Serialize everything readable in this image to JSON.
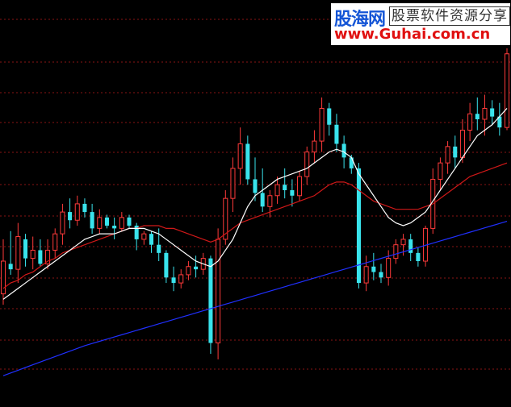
{
  "watermark": {
    "brand": "股海网",
    "tagline": "股票软件资源分享",
    "url": "www.Guhai.com.cn"
  },
  "colors": {
    "background": "#000000",
    "grid": "#8a1414",
    "up": "#ff3a3a",
    "down": "#39e3ec",
    "ma_short": "#ffffff",
    "ma_mid": "#d01818",
    "ma_long": "#2030ff"
  },
  "chart_data": {
    "type": "candlestick",
    "title": "",
    "xlabel": "",
    "ylabel": "",
    "grid": true,
    "ylim": [
      0,
      100
    ],
    "candles": [
      {
        "o": 20,
        "h": 40,
        "l": 16,
        "c": 32
      },
      {
        "o": 31,
        "h": 43,
        "l": 27,
        "c": 29
      },
      {
        "o": 29,
        "h": 46,
        "l": 24,
        "c": 41
      },
      {
        "o": 40,
        "h": 42,
        "l": 30,
        "c": 33
      },
      {
        "o": 33,
        "h": 41,
        "l": 29,
        "c": 36
      },
      {
        "o": 36,
        "h": 40,
        "l": 30,
        "c": 31
      },
      {
        "o": 31,
        "h": 40,
        "l": 29,
        "c": 36
      },
      {
        "o": 36,
        "h": 44,
        "l": 33,
        "c": 42
      },
      {
        "o": 42,
        "h": 53,
        "l": 38,
        "c": 50
      },
      {
        "o": 50,
        "h": 55,
        "l": 44,
        "c": 47
      },
      {
        "o": 47,
        "h": 56,
        "l": 45,
        "c": 53
      },
      {
        "o": 53,
        "h": 55,
        "l": 48,
        "c": 50
      },
      {
        "o": 50,
        "h": 53,
        "l": 42,
        "c": 44
      },
      {
        "o": 44,
        "h": 51,
        "l": 42,
        "c": 48
      },
      {
        "o": 48,
        "h": 49,
        "l": 44,
        "c": 45
      },
      {
        "o": 45,
        "h": 48,
        "l": 40,
        "c": 44
      },
      {
        "o": 44,
        "h": 50,
        "l": 43,
        "c": 48
      },
      {
        "o": 48,
        "h": 49,
        "l": 44,
        "c": 45
      },
      {
        "o": 45,
        "h": 46,
        "l": 36,
        "c": 40
      },
      {
        "o": 40,
        "h": 43,
        "l": 38,
        "c": 42
      },
      {
        "o": 42,
        "h": 43,
        "l": 35,
        "c": 38
      },
      {
        "o": 38,
        "h": 44,
        "l": 32,
        "c": 35
      },
      {
        "o": 35,
        "h": 36,
        "l": 24,
        "c": 26
      },
      {
        "o": 26,
        "h": 30,
        "l": 21,
        "c": 24
      },
      {
        "o": 24,
        "h": 29,
        "l": 22,
        "c": 27
      },
      {
        "o": 27,
        "h": 32,
        "l": 25,
        "c": 30
      },
      {
        "o": 30,
        "h": 34,
        "l": 26,
        "c": 29
      },
      {
        "o": 29,
        "h": 35,
        "l": 27,
        "c": 33
      },
      {
        "o": 33,
        "h": 34,
        "l": -2,
        "c": 2
      },
      {
        "o": 2,
        "h": 44,
        "l": -4,
        "c": 40
      },
      {
        "o": 40,
        "h": 58,
        "l": 38,
        "c": 55
      },
      {
        "o": 55,
        "h": 70,
        "l": 50,
        "c": 66
      },
      {
        "o": 66,
        "h": 81,
        "l": 60,
        "c": 75
      },
      {
        "o": 75,
        "h": 78,
        "l": 60,
        "c": 62
      },
      {
        "o": 62,
        "h": 70,
        "l": 54,
        "c": 57
      },
      {
        "o": 57,
        "h": 66,
        "l": 50,
        "c": 52
      },
      {
        "o": 52,
        "h": 58,
        "l": 48,
        "c": 56
      },
      {
        "o": 56,
        "h": 63,
        "l": 53,
        "c": 60
      },
      {
        "o": 60,
        "h": 66,
        "l": 55,
        "c": 58
      },
      {
        "o": 58,
        "h": 62,
        "l": 52,
        "c": 56
      },
      {
        "o": 56,
        "h": 65,
        "l": 54,
        "c": 63
      },
      {
        "o": 63,
        "h": 74,
        "l": 60,
        "c": 72
      },
      {
        "o": 72,
        "h": 80,
        "l": 68,
        "c": 76
      },
      {
        "o": 76,
        "h": 92,
        "l": 72,
        "c": 88
      },
      {
        "o": 88,
        "h": 90,
        "l": 78,
        "c": 82
      },
      {
        "o": 82,
        "h": 86,
        "l": 72,
        "c": 75
      },
      {
        "o": 75,
        "h": 78,
        "l": 66,
        "c": 70
      },
      {
        "o": 70,
        "h": 71,
        "l": 64,
        "c": 66
      },
      {
        "o": 66,
        "h": 68,
        "l": 22,
        "c": 24
      },
      {
        "o": 24,
        "h": 34,
        "l": 21,
        "c": 30
      },
      {
        "o": 30,
        "h": 35,
        "l": 25,
        "c": 28
      },
      {
        "o": 28,
        "h": 31,
        "l": 24,
        "c": 26
      },
      {
        "o": 26,
        "h": 36,
        "l": 23,
        "c": 33
      },
      {
        "o": 33,
        "h": 40,
        "l": 31,
        "c": 38
      },
      {
        "o": 38,
        "h": 42,
        "l": 34,
        "c": 40
      },
      {
        "o": 40,
        "h": 42,
        "l": 32,
        "c": 35
      },
      {
        "o": 35,
        "h": 37,
        "l": 30,
        "c": 32
      },
      {
        "o": 32,
        "h": 45,
        "l": 30,
        "c": 44
      },
      {
        "o": 44,
        "h": 66,
        "l": 42,
        "c": 62
      },
      {
        "o": 62,
        "h": 70,
        "l": 58,
        "c": 68
      },
      {
        "o": 68,
        "h": 76,
        "l": 64,
        "c": 74
      },
      {
        "o": 74,
        "h": 78,
        "l": 66,
        "c": 70
      },
      {
        "o": 70,
        "h": 84,
        "l": 68,
        "c": 80
      },
      {
        "o": 80,
        "h": 90,
        "l": 76,
        "c": 86
      },
      {
        "o": 86,
        "h": 92,
        "l": 80,
        "c": 84
      },
      {
        "o": 84,
        "h": 93,
        "l": 78,
        "c": 88
      },
      {
        "o": 88,
        "h": 91,
        "l": 82,
        "c": 85
      },
      {
        "o": 85,
        "h": 90,
        "l": 78,
        "c": 81
      },
      {
        "o": 81,
        "h": 110,
        "l": 80,
        "c": 108
      }
    ],
    "ma_short": [
      18,
      20,
      22,
      24,
      26,
      28,
      30,
      32,
      34,
      36,
      38,
      40,
      41,
      42,
      42,
      42,
      43,
      44,
      44,
      44,
      43,
      42,
      40,
      38,
      36,
      34,
      32,
      31,
      30,
      32,
      36,
      40,
      46,
      52,
      56,
      58,
      60,
      62,
      63,
      64,
      65,
      66,
      68,
      70,
      72,
      73,
      72,
      70,
      64,
      60,
      56,
      52,
      48,
      46,
      45,
      46,
      48,
      50,
      54,
      58,
      62,
      66,
      70,
      74,
      78,
      80,
      82,
      85,
      88
    ],
    "ma_mid": [
      22,
      24,
      25,
      27,
      28,
      30,
      32,
      33,
      35,
      36,
      37,
      38,
      39,
      40,
      41,
      42,
      43,
      44,
      44,
      45,
      45,
      45,
      44,
      44,
      43,
      42,
      41,
      40,
      39,
      40,
      42,
      44,
      46,
      47,
      48,
      49,
      50,
      51,
      52,
      53,
      54,
      55,
      56,
      58,
      60,
      61,
      61,
      60,
      58,
      56,
      54,
      53,
      52,
      51,
      51,
      51,
      51,
      52,
      53,
      55,
      57,
      59,
      61,
      63,
      64,
      65,
      66,
      67,
      68
    ],
    "ma_long": [
      -10,
      -9,
      -8,
      -7,
      -6,
      -5,
      -4,
      -3,
      -2,
      -1,
      0,
      1,
      1.8,
      2.6,
      3.4,
      4.2,
      5,
      5.8,
      6.6,
      7.4,
      8.2,
      9,
      9.8,
      10.6,
      11.4,
      12.2,
      13,
      13.8,
      14.6,
      15.4,
      16.2,
      17,
      17.8,
      18.6,
      19.4,
      20.2,
      21,
      21.8,
      22.6,
      23.4,
      24.2,
      25,
      25.8,
      26.6,
      27.4,
      28.2,
      29,
      29.8,
      30.6,
      31.4,
      32.2,
      33,
      33.8,
      34.6,
      35.4,
      36.2,
      37,
      37.8,
      38.6,
      39.4,
      40.2,
      41,
      41.8,
      42.6,
      43.4,
      44.2,
      45,
      45.8,
      46.6
    ]
  }
}
